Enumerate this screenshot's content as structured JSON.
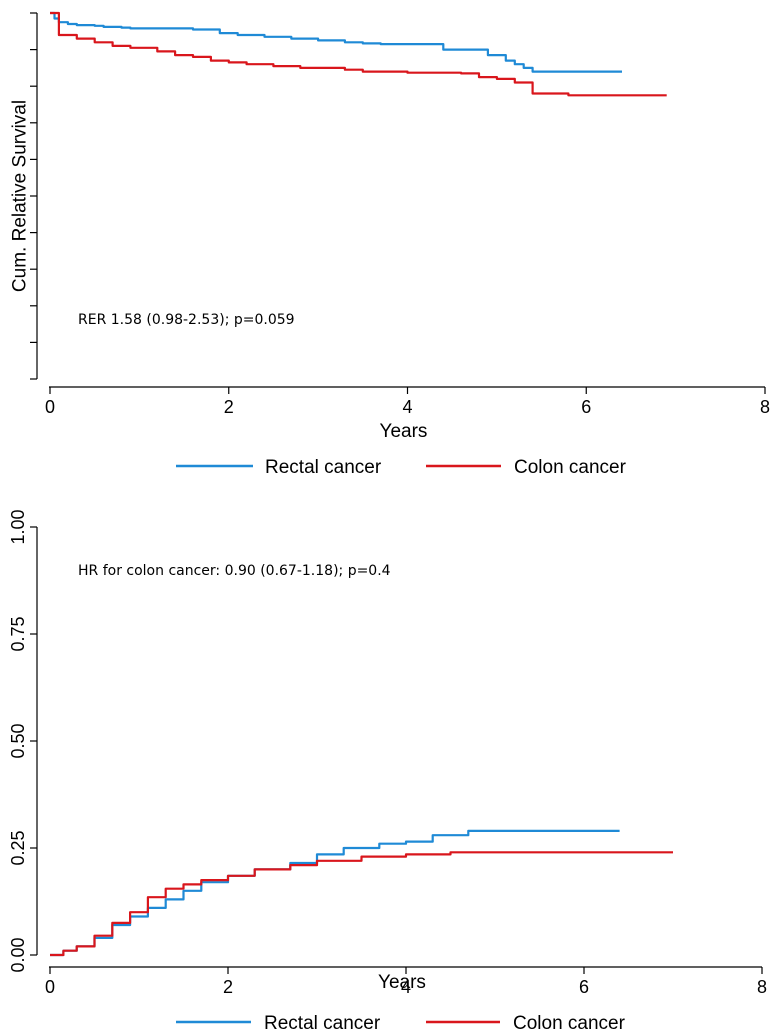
{
  "colors": {
    "rectal": "#1f8ad6",
    "colon": "#d9161c",
    "axis": "#000000"
  },
  "chart_data": [
    {
      "type": "line",
      "step": true,
      "xlabel": "Years",
      "ylabel": "Cum. Relative Survival",
      "xlim": [
        0,
        8
      ],
      "ylim": [
        0,
        1
      ],
      "x_ticks": [
        0,
        2,
        4,
        6,
        8
      ],
      "x_tick_labels": [
        "0",
        "2",
        "4",
        "6",
        "8"
      ],
      "y_ticks": [
        0,
        0.1,
        0.2,
        0.3,
        0.4,
        0.5,
        0.6,
        0.7,
        0.8,
        0.9,
        1.0
      ],
      "y_tick_labels": [],
      "annotation": "RER 1.58 (0.98-2.53); p=0.059",
      "legend": [
        "Rectal cancer",
        "Colon cancer"
      ],
      "legend_position": "bottom",
      "series": [
        {
          "name": "Rectal cancer",
          "color_key": "rectal",
          "x": [
            0,
            0.05,
            0.1,
            0.2,
            0.3,
            0.5,
            0.6,
            0.8,
            0.9,
            1.6,
            1.9,
            2.1,
            2.4,
            2.7,
            3.0,
            3.3,
            3.5,
            3.7,
            4.3,
            4.4,
            4.8,
            4.9,
            5.1,
            5.2,
            5.3,
            5.4,
            6.4
          ],
          "y": [
            1.0,
            0.985,
            0.975,
            0.97,
            0.967,
            0.965,
            0.962,
            0.96,
            0.958,
            0.955,
            0.945,
            0.94,
            0.935,
            0.93,
            0.925,
            0.92,
            0.917,
            0.915,
            0.915,
            0.9,
            0.9,
            0.885,
            0.87,
            0.86,
            0.85,
            0.84,
            0.84
          ]
        },
        {
          "name": "Colon cancer",
          "color_key": "colon",
          "x": [
            0,
            0.1,
            0.3,
            0.5,
            0.7,
            0.9,
            1.2,
            1.4,
            1.6,
            1.8,
            2.0,
            2.2,
            2.5,
            2.8,
            3.3,
            3.5,
            4.0,
            4.6,
            4.8,
            5.0,
            5.2,
            5.4,
            5.8,
            6.9
          ],
          "y": [
            1.0,
            0.94,
            0.93,
            0.92,
            0.91,
            0.905,
            0.895,
            0.885,
            0.88,
            0.87,
            0.865,
            0.86,
            0.855,
            0.85,
            0.845,
            0.84,
            0.837,
            0.835,
            0.825,
            0.82,
            0.81,
            0.78,
            0.775,
            0.775
          ]
        }
      ]
    },
    {
      "type": "line",
      "step": true,
      "xlabel": "Years",
      "ylabel": "",
      "xlim": [
        0,
        8
      ],
      "ylim": [
        0,
        1
      ],
      "x_ticks": [
        0,
        2,
        4,
        6,
        8
      ],
      "x_tick_labels": [
        "0",
        "2",
        "4",
        "6",
        "8"
      ],
      "y_ticks": [
        0,
        0.25,
        0.5,
        0.75,
        1.0
      ],
      "y_tick_labels": [
        "0.00",
        "0.25",
        "0.50",
        "0.75",
        "1.00"
      ],
      "annotation": "HR for colon cancer: 0.90 (0.67-1.18); p=0.4",
      "legend": [
        "Rectal cancer",
        "Colon cancer"
      ],
      "legend_position": "bottom",
      "series": [
        {
          "name": "Rectal cancer",
          "color_key": "rectal",
          "x": [
            0,
            0.15,
            0.3,
            0.5,
            0.7,
            0.9,
            1.1,
            1.3,
            1.5,
            1.7,
            2.0,
            2.3,
            2.7,
            3.0,
            3.3,
            3.7,
            4.0,
            4.3,
            4.7,
            5.5,
            6.4
          ],
          "y": [
            0,
            0.01,
            0.02,
            0.04,
            0.07,
            0.09,
            0.11,
            0.13,
            0.15,
            0.17,
            0.185,
            0.2,
            0.215,
            0.235,
            0.25,
            0.26,
            0.265,
            0.28,
            0.29,
            0.29,
            0.29
          ]
        },
        {
          "name": "Colon cancer",
          "color_key": "colon",
          "x": [
            0,
            0.15,
            0.3,
            0.5,
            0.7,
            0.9,
            1.1,
            1.3,
            1.5,
            1.7,
            2.0,
            2.3,
            2.7,
            3.0,
            3.5,
            4.0,
            4.5,
            5.5,
            7.0
          ],
          "y": [
            0,
            0.01,
            0.02,
            0.045,
            0.075,
            0.1,
            0.135,
            0.155,
            0.165,
            0.175,
            0.185,
            0.2,
            0.21,
            0.22,
            0.23,
            0.235,
            0.24,
            0.24,
            0.24
          ]
        }
      ]
    }
  ]
}
